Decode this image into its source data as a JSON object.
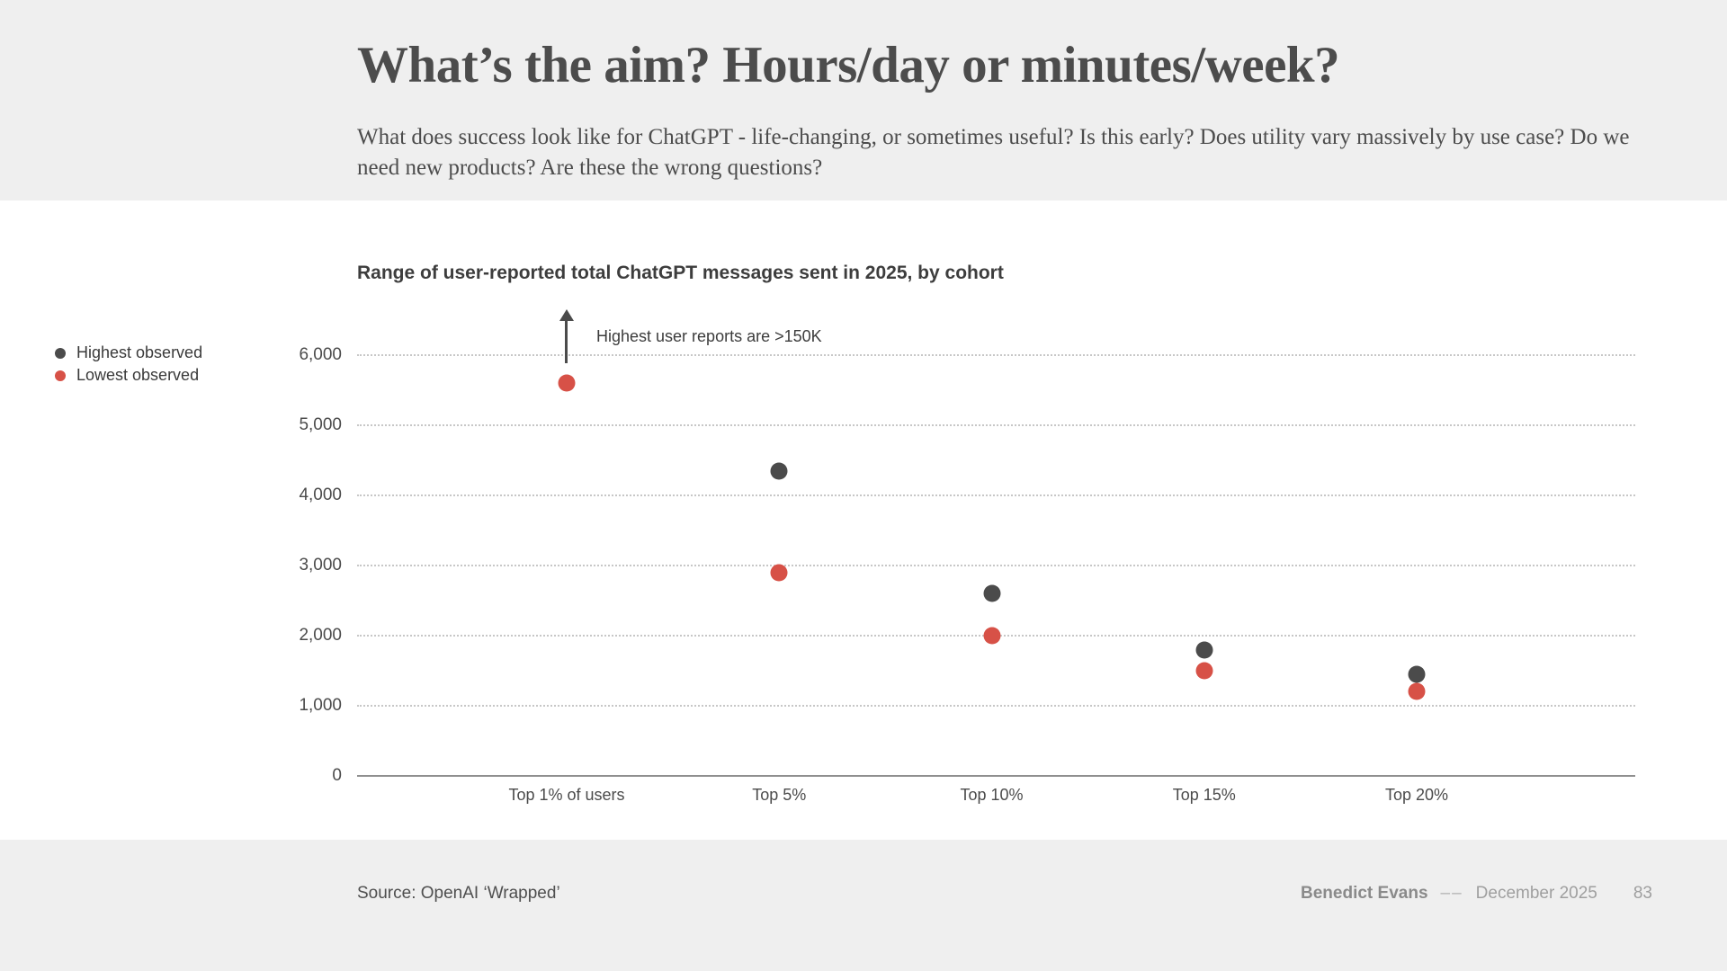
{
  "slide": {
    "title": "What’s the aim? Hours/day or minutes/week?",
    "subtitle": "What does success look like for ChatGPT - life-changing, or sometimes useful? Is this early? Does utility vary massively by use case? Do we need new products? Are these the wrong questions?"
  },
  "chart_data": {
    "type": "scatter",
    "title": "Range of user-reported total ChatGPT messages sent in 2025, by cohort",
    "categories": [
      "Top 1% of users",
      "Top 5%",
      "Top 10%",
      "Top 15%",
      "Top 20%"
    ],
    "series": [
      {
        "name": "Highest observed",
        "color": "#4b4b4b",
        "values": [
          null,
          4350,
          2600,
          1800,
          1450
        ]
      },
      {
        "name": "Lowest observed",
        "color": "#d75147",
        "values": [
          5600,
          2900,
          2000,
          1500,
          1200
        ]
      }
    ],
    "annotation": {
      "text": "Highest user reports are >150K",
      "category_index": 0
    },
    "y_ticks": [
      "0",
      "1,000",
      "2,000",
      "3,000",
      "4,000",
      "5,000",
      "6,000"
    ],
    "ylim": [
      0,
      6200
    ],
    "grid": "horizontal-dotted",
    "legend_position": "left"
  },
  "footer": {
    "source": "Source: OpenAI ‘Wrapped’",
    "author": "Benedict Evans",
    "separator": "––",
    "date": "December 2025",
    "page": "83"
  }
}
